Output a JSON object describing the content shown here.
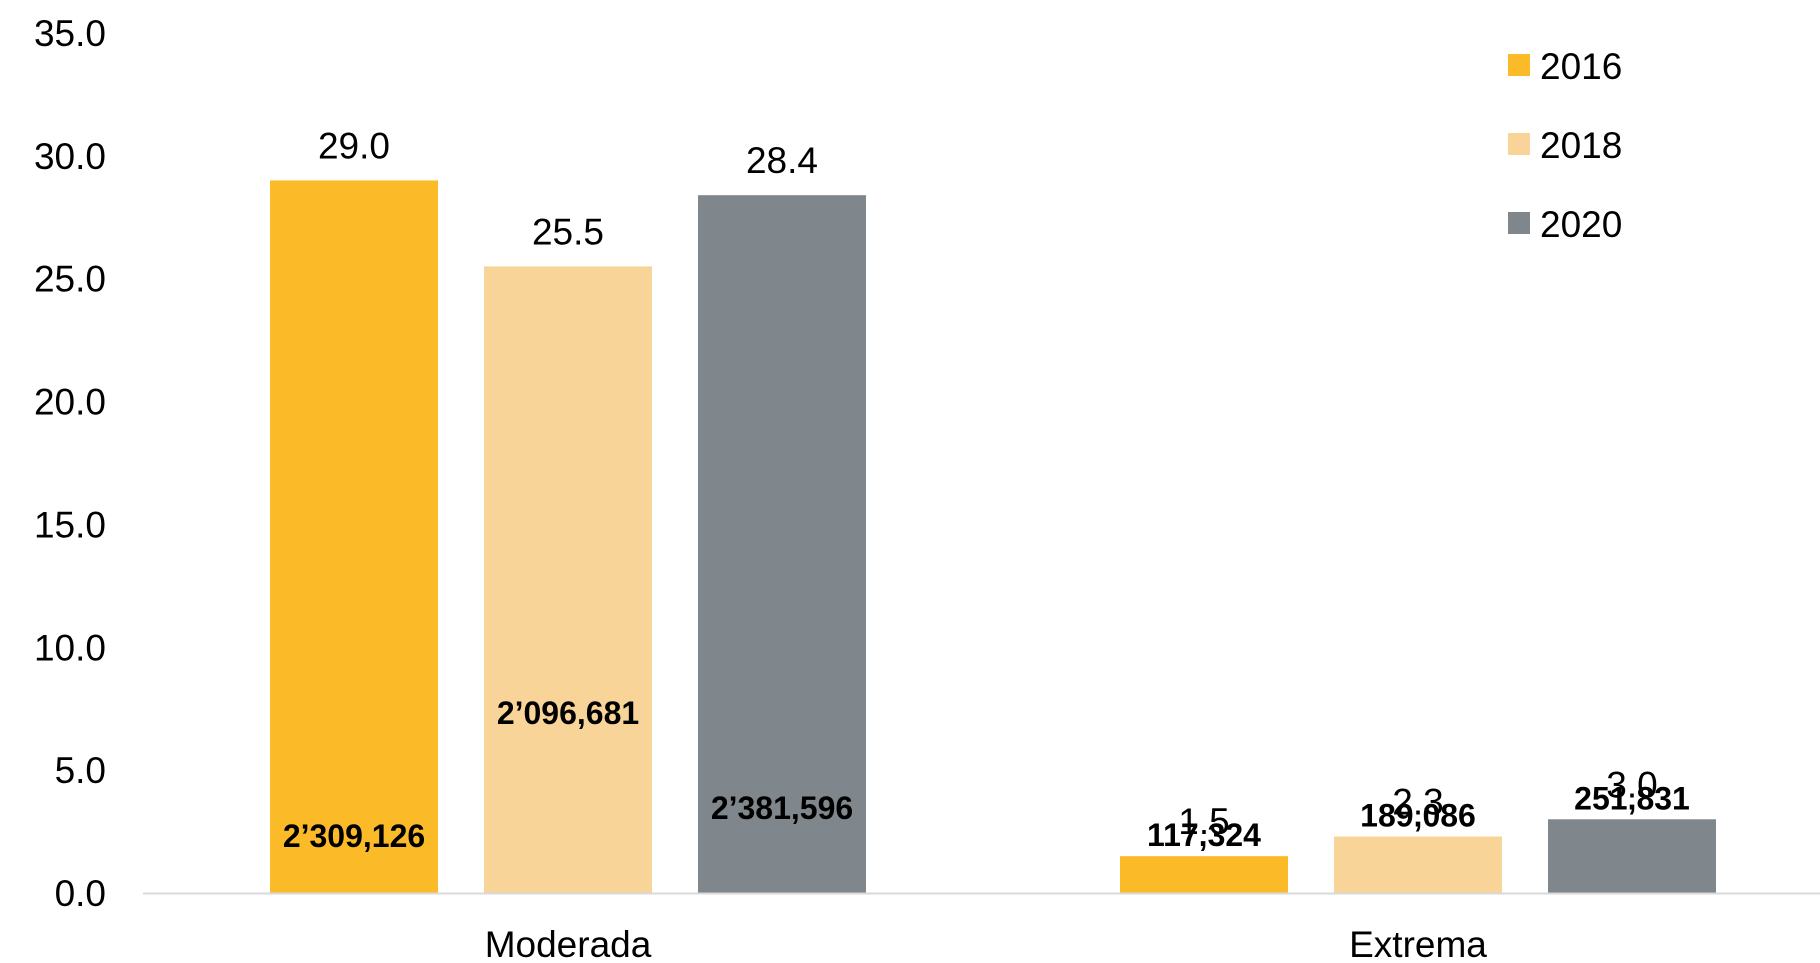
{
  "chart_data": {
    "type": "bar",
    "categories": [
      "Moderada",
      "Extrema"
    ],
    "series": [
      {
        "name": "2016",
        "color": "#FBBA27",
        "values": [
          29.0,
          1.5
        ],
        "value_labels": [
          "29.0",
          "1.5"
        ],
        "count_labels": [
          "2’309,126",
          "117,324"
        ]
      },
      {
        "name": "2018",
        "color": "#F8D498",
        "values": [
          25.5,
          2.3
        ],
        "value_labels": [
          "25.5",
          "2.3"
        ],
        "count_labels": [
          "2’096,681",
          "189,086"
        ]
      },
      {
        "name": "2020",
        "color": "#7F878C",
        "values": [
          28.4,
          3.0
        ],
        "value_labels": [
          "28.4",
          "3.0"
        ],
        "count_labels": [
          "2’381,596",
          "251,831"
        ]
      }
    ],
    "y_ticks": [
      "0.0",
      "5.0",
      "10.0",
      "15.0",
      "20.0",
      "25.0",
      "30.0",
      "35.0"
    ],
    "ylim": [
      0,
      35
    ],
    "grid": false,
    "legend_position": "top-right",
    "title": "",
    "xlabel": "",
    "ylabel": ""
  }
}
